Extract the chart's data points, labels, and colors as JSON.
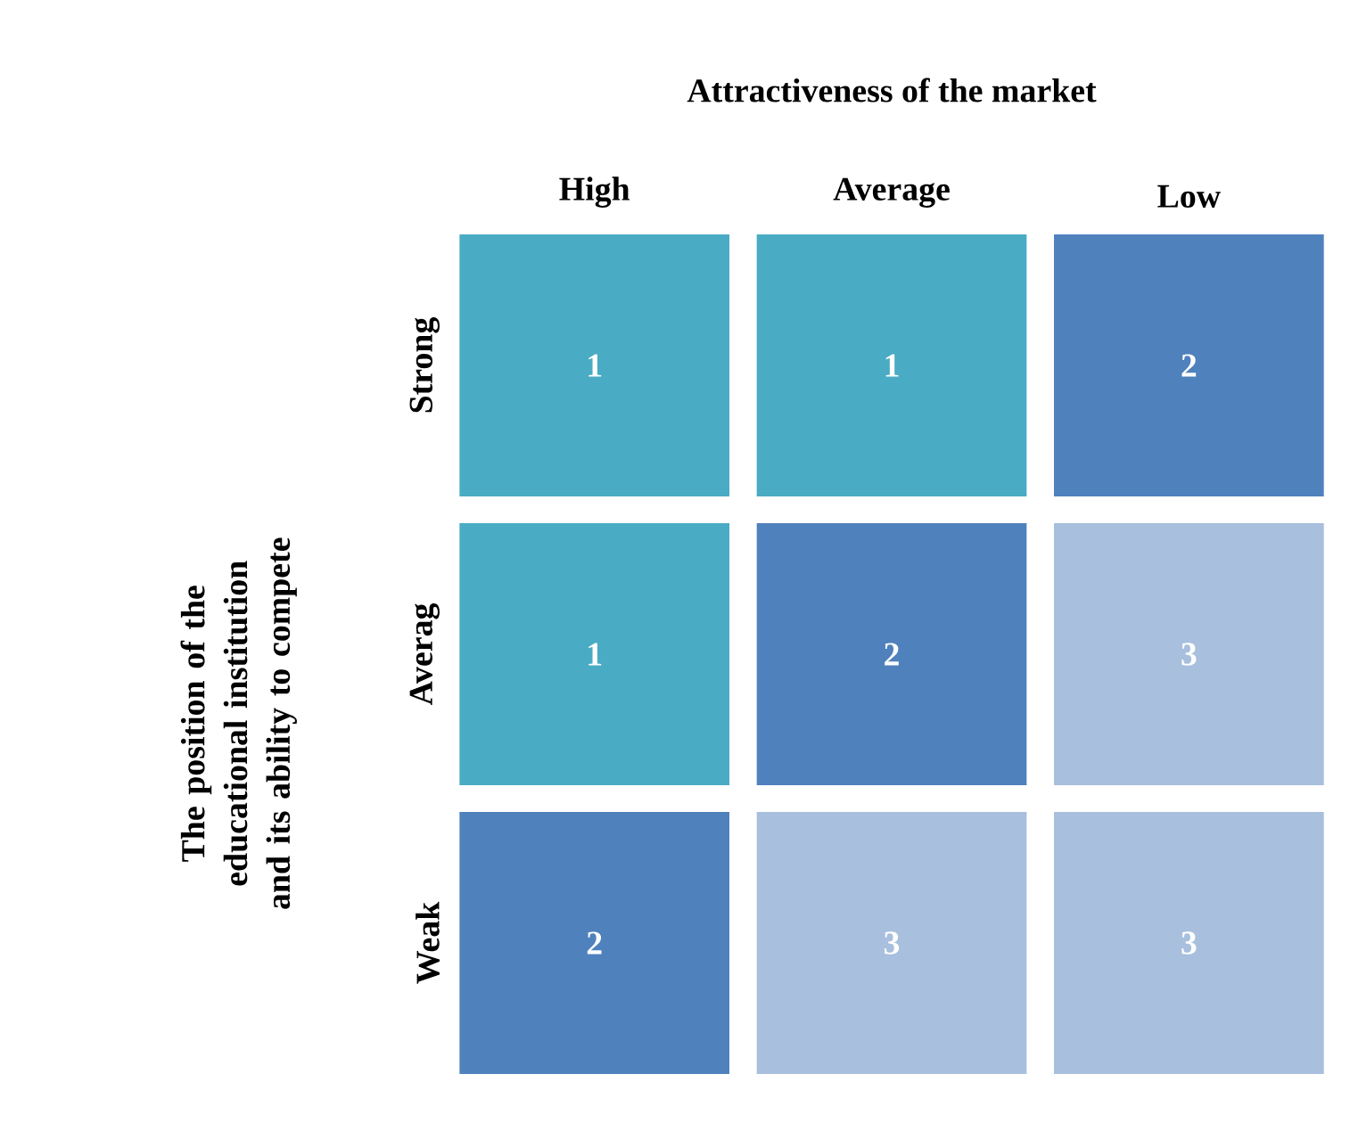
{
  "chart_data": {
    "type": "heatmap",
    "xlabel": "Attractiveness of the market",
    "ylabel": "The position of the educational institution and its ability to compete",
    "categories": [
      "High",
      "Average",
      "Low"
    ],
    "y_categories": [
      "Strong",
      "Averag",
      "Weak"
    ],
    "cells": [
      [
        1,
        1,
        2
      ],
      [
        1,
        2,
        3
      ],
      [
        2,
        3,
        3
      ]
    ],
    "data_labels": true,
    "colors": [
      "#4aabc4",
      "#4aabc4",
      "#4f81bd",
      "#4aabc4",
      "#4f81bd",
      "#a8bfde",
      "#4f81bd",
      "#a8bfde",
      "#a8bfde"
    ]
  }
}
